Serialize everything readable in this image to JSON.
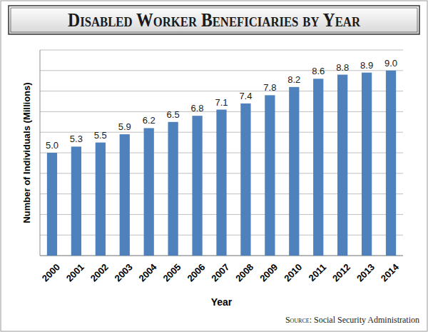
{
  "chart_data": {
    "type": "bar",
    "title": "Disabled Worker Beneficiaries by Year",
    "x_label": "Year",
    "y_label": "Number of Individuals (Millions)",
    "annotations": [
      "Source: Social Security Administration"
    ],
    "categories": [
      "2000",
      "2001",
      "2002",
      "2003",
      "2004",
      "2005",
      "2006",
      "2007",
      "2008",
      "2009",
      "2010",
      "2011",
      "2012",
      "2013",
      "2014"
    ],
    "values": [
      5.0,
      5.3,
      5.5,
      5.9,
      6.2,
      6.5,
      6.8,
      7.1,
      7.4,
      7.8,
      8.2,
      8.6,
      8.8,
      8.9,
      9.0
    ],
    "value_labels": [
      "5.0",
      "5.3",
      "5.5",
      "5.9",
      "6.2",
      "6.5",
      "6.8",
      "7.1",
      "7.4",
      "7.8",
      "8.2",
      "8.6",
      "8.8",
      "8.9",
      "9.0"
    ],
    "color": "#4f81bd",
    "ylim": [
      0,
      10
    ],
    "yticks": [
      0,
      1,
      2,
      3,
      4,
      5,
      6,
      7,
      8,
      9,
      10
    ],
    "grid": true,
    "data_labels": true,
    "tick_labels": "x"
  }
}
